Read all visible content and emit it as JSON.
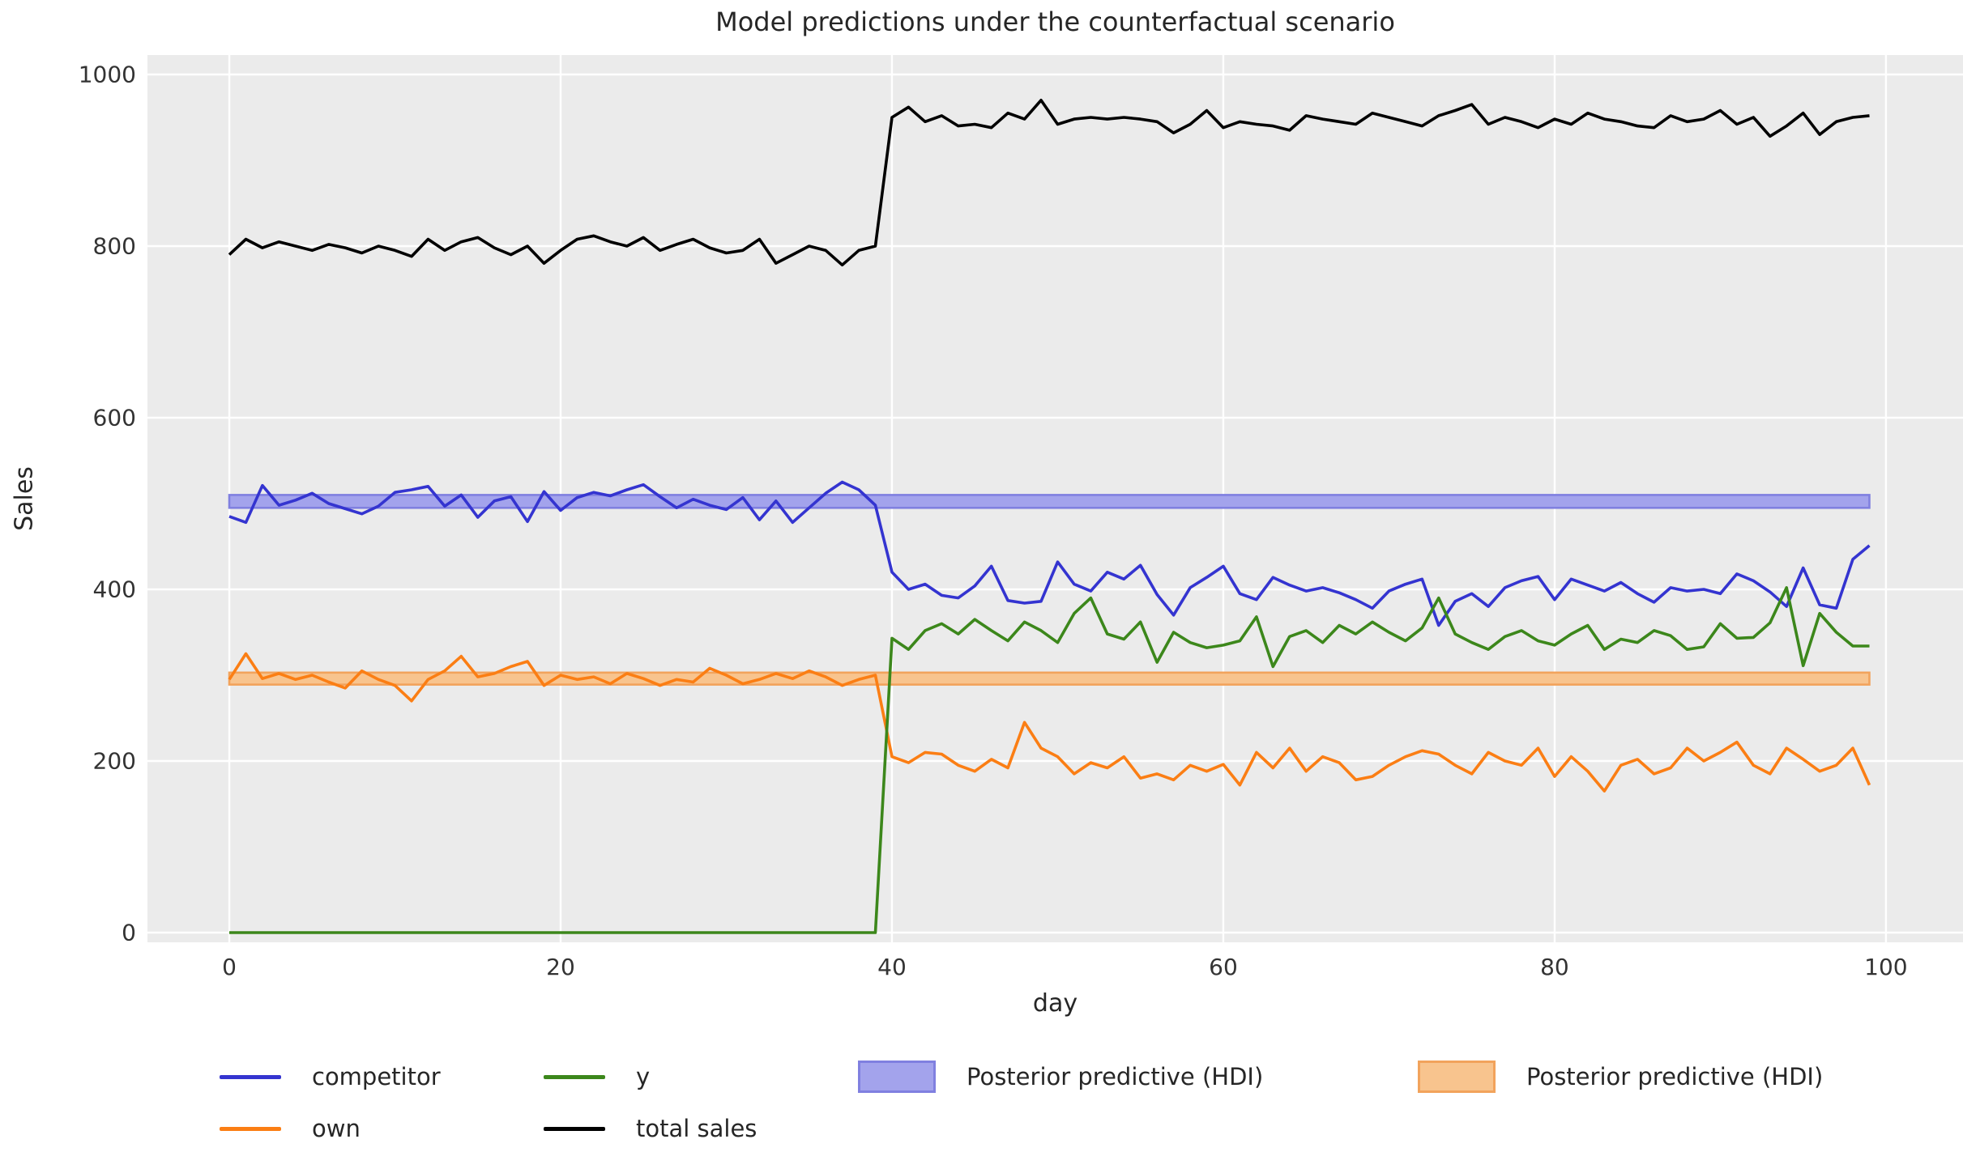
{
  "chart_data": {
    "type": "line",
    "title": "Model predictions under the counterfactual scenario",
    "xlabel": "day",
    "ylabel": "Sales",
    "grid": true,
    "background_color": "#ebebeb",
    "grid_color": "#ffffff",
    "text_color": "#262626",
    "xlim": [
      -4.94,
      104.65
    ],
    "ylim": [
      -11.32,
      1022.64
    ],
    "xticks": [
      0,
      20,
      40,
      60,
      80,
      100
    ],
    "yticks": [
      0,
      200,
      400,
      600,
      800,
      1000
    ],
    "x": [
      0,
      1,
      2,
      3,
      4,
      5,
      6,
      7,
      8,
      9,
      10,
      11,
      12,
      13,
      14,
      15,
      16,
      17,
      18,
      19,
      20,
      21,
      22,
      23,
      24,
      25,
      26,
      27,
      28,
      29,
      30,
      31,
      32,
      33,
      34,
      35,
      36,
      37,
      38,
      39,
      40,
      41,
      42,
      43,
      44,
      45,
      46,
      47,
      48,
      49,
      50,
      51,
      52,
      53,
      54,
      55,
      56,
      57,
      58,
      59,
      60,
      61,
      62,
      63,
      64,
      65,
      66,
      67,
      68,
      69,
      70,
      71,
      72,
      73,
      74,
      75,
      76,
      77,
      78,
      79,
      80,
      81,
      82,
      83,
      84,
      85,
      86,
      87,
      88,
      89,
      90,
      91,
      92,
      93,
      94,
      95,
      96,
      97,
      98,
      99
    ],
    "series": [
      {
        "name": "competitor",
        "color": "#3434d0",
        "values": [
          485,
          478,
          521,
          498,
          504,
          512,
          500,
          494,
          488,
          497,
          513,
          516,
          520,
          497,
          510,
          484,
          503,
          508,
          479,
          514,
          492,
          507,
          513,
          509,
          516,
          522,
          508,
          495,
          505,
          498,
          493,
          507,
          481,
          503,
          478,
          495,
          512,
          525,
          516,
          498,
          420,
          400,
          406,
          393,
          390,
          404,
          427,
          387,
          384,
          386,
          432,
          406,
          398,
          420,
          412,
          428,
          394,
          370,
          402,
          414,
          427,
          395,
          388,
          414,
          405,
          398,
          402,
          396,
          388,
          378,
          398,
          406,
          412,
          358,
          386,
          395,
          380,
          402,
          410,
          415,
          388,
          412,
          405,
          398,
          408,
          395,
          385,
          402,
          398,
          400,
          395,
          418,
          410,
          397,
          380,
          425,
          382,
          378,
          435,
          451
        ]
      },
      {
        "name": "own",
        "color": "#fb7e14",
        "values": [
          295,
          325,
          296,
          302,
          295,
          300,
          292,
          285,
          305,
          295,
          288,
          270,
          295,
          305,
          322,
          298,
          302,
          310,
          316,
          288,
          300,
          295,
          298,
          290,
          302,
          296,
          288,
          295,
          292,
          308,
          300,
          290,
          295,
          302,
          296,
          305,
          298,
          288,
          295,
          300,
          205,
          198,
          210,
          208,
          195,
          188,
          202,
          192,
          245,
          215,
          205,
          185,
          198,
          192,
          205,
          180,
          185,
          178,
          195,
          188,
          196,
          172,
          210,
          192,
          215,
          188,
          205,
          198,
          178,
          182,
          195,
          205,
          212,
          208,
          195,
          185,
          210,
          200,
          195,
          215,
          182,
          205,
          188,
          165,
          195,
          202,
          185,
          192,
          215,
          200,
          210,
          222,
          195,
          185,
          215,
          202,
          188,
          195,
          215,
          172
        ]
      },
      {
        "name": "y",
        "color": "#3c871b",
        "values": [
          0,
          0,
          0,
          0,
          0,
          0,
          0,
          0,
          0,
          0,
          0,
          0,
          0,
          0,
          0,
          0,
          0,
          0,
          0,
          0,
          0,
          0,
          0,
          0,
          0,
          0,
          0,
          0,
          0,
          0,
          0,
          0,
          0,
          0,
          0,
          0,
          0,
          0,
          0,
          0,
          343,
          330,
          352,
          360,
          348,
          365,
          352,
          340,
          362,
          352,
          338,
          372,
          390,
          348,
          342,
          362,
          315,
          350,
          338,
          332,
          335,
          340,
          368,
          310,
          345,
          352,
          338,
          358,
          348,
          362,
          350,
          340,
          355,
          390,
          348,
          338,
          330,
          345,
          352,
          340,
          335,
          348,
          358,
          330,
          342,
          338,
          352,
          346,
          330,
          333,
          360,
          343,
          344,
          361,
          402,
          311,
          372,
          350,
          334,
          334
        ]
      },
      {
        "name": "total sales",
        "color": "#000000",
        "values": [
          790,
          808,
          798,
          805,
          800,
          795,
          802,
          798,
          792,
          800,
          795,
          788,
          808,
          795,
          805,
          810,
          798,
          790,
          800,
          780,
          795,
          808,
          812,
          805,
          800,
          810,
          795,
          802,
          808,
          798,
          792,
          795,
          808,
          780,
          790,
          800,
          795,
          778,
          795,
          800,
          950,
          962,
          945,
          952,
          940,
          942,
          938,
          955,
          948,
          970,
          942,
          948,
          950,
          948,
          950,
          948,
          945,
          932,
          942,
          958,
          938,
          945,
          942,
          940,
          935,
          952,
          948,
          945,
          942,
          955,
          950,
          945,
          940,
          952,
          958,
          965,
          942,
          950,
          945,
          938,
          948,
          942,
          955,
          948,
          945,
          940,
          938,
          952,
          945,
          948,
          958,
          942,
          950,
          928,
          940,
          955,
          930,
          945,
          950,
          952
        ]
      }
    ],
    "bands": [
      {
        "name": "Posterior predictive (HDI)",
        "lo": 495,
        "hi": 510,
        "x_start": 0,
        "x_end": 99,
        "fill": "#a3a3ec",
        "edge": "#8080e0"
      },
      {
        "name": "Posterior predictive (HDI)",
        "lo": 289,
        "hi": 303,
        "x_start": 0,
        "x_end": 99,
        "fill": "#f8c48e",
        "edge": "#f2a35c"
      }
    ]
  },
  "legend": {
    "items": [
      {
        "label": "competitor",
        "type": "line",
        "color": "#3434d0"
      },
      {
        "label": "own",
        "type": "line",
        "color": "#fb7e14"
      },
      {
        "label": "y",
        "type": "line",
        "color": "#3c871b"
      },
      {
        "label": "total sales",
        "type": "line",
        "color": "#000000"
      },
      {
        "label": "Posterior predictive (HDI)",
        "type": "patch",
        "color": "#a3a3ec",
        "edge": "#8080e0"
      },
      {
        "label": "Posterior predictive (HDI)",
        "type": "patch",
        "color": "#f8c48e",
        "edge": "#f2a35c"
      }
    ]
  }
}
